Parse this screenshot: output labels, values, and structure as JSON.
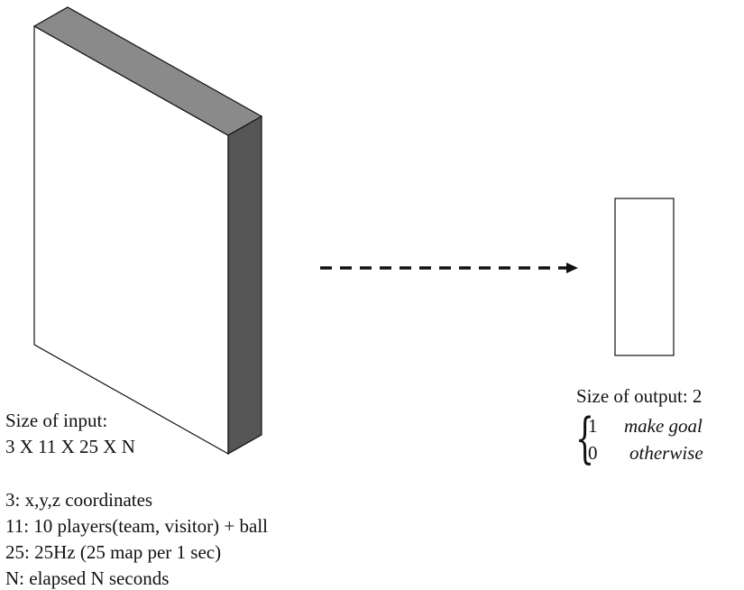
{
  "input": {
    "title": "Size of input:",
    "size": "3 X 11 X 25 X N"
  },
  "dimensions": [
    "3: x,y,z coordinates",
    "11: 10 players(team, visitor) + ball",
    "25: 25Hz (25 map per 1 sec)",
    "N: elapsed N seconds"
  ],
  "output": {
    "title": "Size of output: 2",
    "cases": [
      {
        "value": "1",
        "condition": "make goal"
      },
      {
        "value": "0",
        "condition": "otherwise"
      }
    ]
  },
  "colors": {
    "box_top": "#8a8a8a",
    "box_side": "#555555",
    "outline": "#111111"
  }
}
